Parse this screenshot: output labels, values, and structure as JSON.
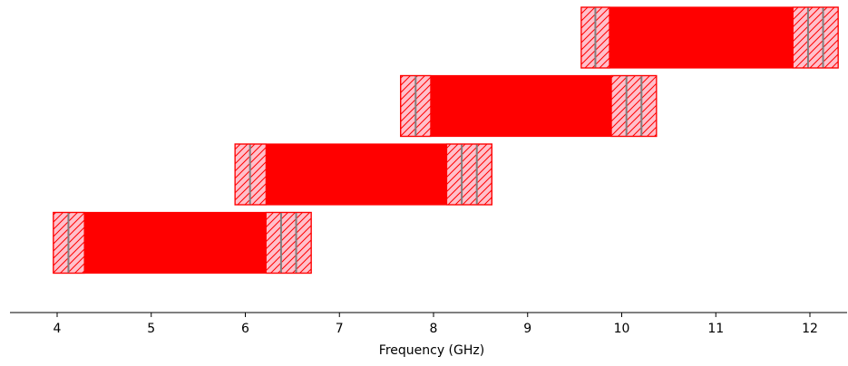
{
  "chart_data": {
    "type": "bar",
    "orientation": "horizontal",
    "title": "",
    "xlabel": "Frequency (GHz)",
    "ylabel": "",
    "xlim": [
      3.5,
      12.4
    ],
    "ylim": [
      -0.55,
      4.4
    ],
    "xticks": [
      4,
      5,
      6,
      7,
      8,
      9,
      10,
      11,
      12
    ],
    "y_axis_visible": false,
    "grid": false,
    "colors": {
      "main_fill": "#ff0000",
      "margin_fill": "#ffc0cb",
      "margin_edge": "#ff0000",
      "marker_line": "#808080",
      "axis": "#000000"
    },
    "bands": [
      {
        "row": 0,
        "start": 3.96,
        "end": 6.7,
        "left_margin": [
          3.96,
          4.29
        ],
        "right_margin": [
          6.22,
          6.7
        ],
        "markers": [
          4.12,
          6.38,
          6.54
        ]
      },
      {
        "row": 1,
        "start": 5.89,
        "end": 8.62,
        "left_margin": [
          5.89,
          6.22
        ],
        "right_margin": [
          8.14,
          8.62
        ],
        "markers": [
          6.05,
          8.3,
          8.46
        ]
      },
      {
        "row": 2,
        "start": 7.65,
        "end": 10.37,
        "left_margin": [
          7.65,
          7.97
        ],
        "right_margin": [
          9.89,
          10.37
        ],
        "markers": [
          7.81,
          10.05,
          10.21
        ]
      },
      {
        "row": 3,
        "start": 9.57,
        "end": 12.3,
        "left_margin": [
          9.57,
          9.87
        ],
        "right_margin": [
          11.82,
          12.3
        ],
        "markers": [
          9.72,
          11.98,
          12.14
        ]
      }
    ]
  }
}
